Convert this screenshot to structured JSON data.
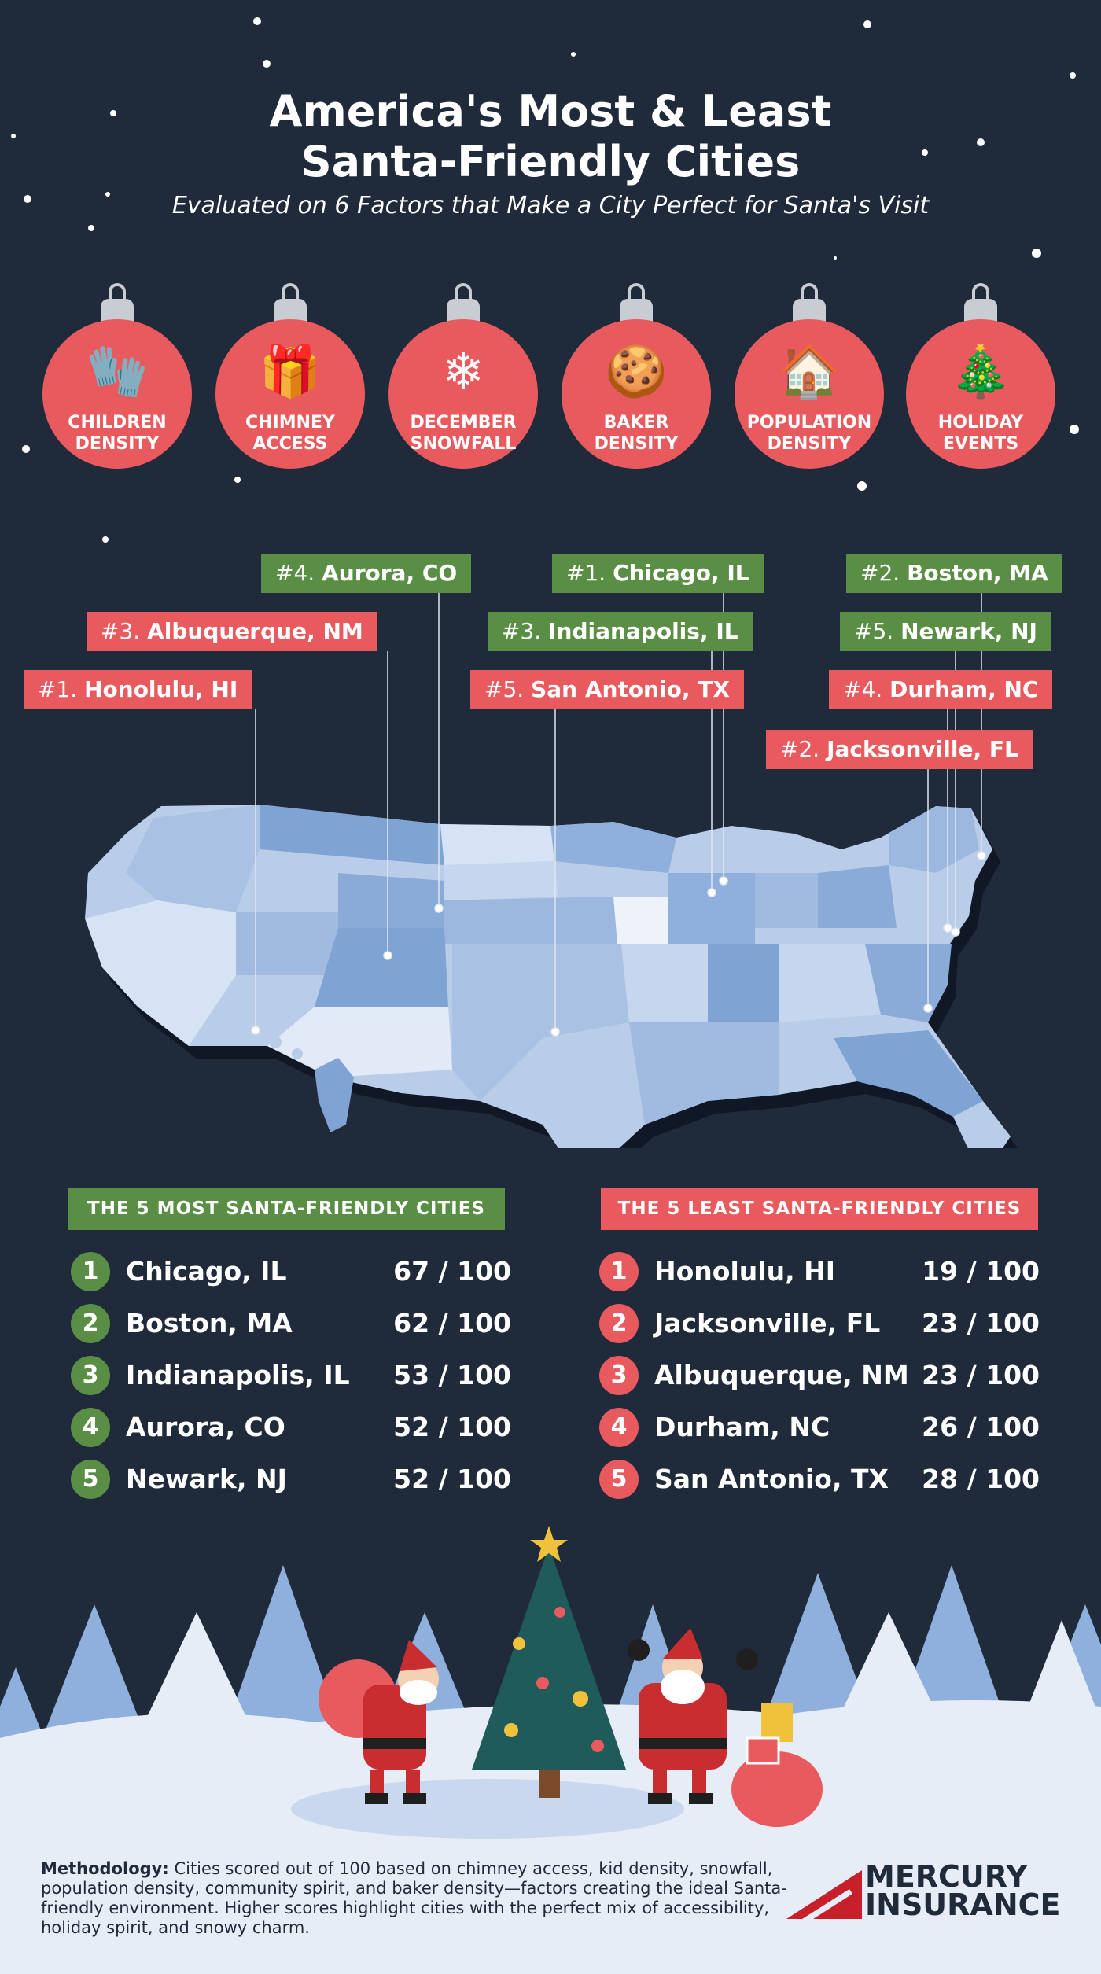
{
  "header": {
    "title_line1": "America's Most & Least",
    "title_line2": "Santa-Friendly Cities",
    "subtitle": "Evaluated on 6 Factors that Make a City Perfect for Santa's Visit"
  },
  "factors": [
    {
      "label": "CHILDREN\nDENSITY",
      "icon": "mittens-icon",
      "glyph": "🧤"
    },
    {
      "label": "CHIMNEY\nACCESS",
      "icon": "gift-icon",
      "glyph": "🎁"
    },
    {
      "label": "DECEMBER\nSNOWFALL",
      "icon": "snowflake-icon",
      "glyph": "❄"
    },
    {
      "label": "BAKER\nDENSITY",
      "icon": "gingerbread-icon",
      "glyph": "🍪"
    },
    {
      "label": "POPULATION\nDENSITY",
      "icon": "houses-icon",
      "glyph": "🏠"
    },
    {
      "label": "HOLIDAY\nEVENTS",
      "icon": "christmas-tree-icon",
      "glyph": "🎄"
    }
  ],
  "map_tags": [
    {
      "rank": "#4.",
      "city": "Aurora, CO",
      "type": "most"
    },
    {
      "rank": "#1.",
      "city": "Chicago, IL",
      "type": "most"
    },
    {
      "rank": "#2.",
      "city": "Boston, MA",
      "type": "most"
    },
    {
      "rank": "#3.",
      "city": "Albuquerque, NM",
      "type": "least"
    },
    {
      "rank": "#3.",
      "city": "Indianapolis, IL",
      "type": "most"
    },
    {
      "rank": "#5.",
      "city": "Newark, NJ",
      "type": "most"
    },
    {
      "rank": "#1.",
      "city": "Honolulu, HI",
      "type": "least"
    },
    {
      "rank": "#5.",
      "city": "San Antonio, TX",
      "type": "least"
    },
    {
      "rank": "#4.",
      "city": "Durham, NC",
      "type": "least"
    },
    {
      "rank": "#2.",
      "city": "Jacksonville, FL",
      "type": "least"
    }
  ],
  "most": {
    "heading": "THE 5 MOST SANTA-FRIENDLY CITIES",
    "rows": [
      {
        "num": "1",
        "city": "Chicago, IL",
        "score": "67 / 100"
      },
      {
        "num": "2",
        "city": "Boston, MA",
        "score": "62 / 100"
      },
      {
        "num": "3",
        "city": "Indianapolis, IL",
        "score": "53 / 100"
      },
      {
        "num": "4",
        "city": "Aurora, CO",
        "score": "52 / 100"
      },
      {
        "num": "5",
        "city": "Newark, NJ",
        "score": "52 / 100"
      }
    ]
  },
  "least": {
    "heading": "THE 5 LEAST SANTA-FRIENDLY CITIES",
    "rows": [
      {
        "num": "1",
        "city": "Honolulu, HI",
        "score": "19 / 100"
      },
      {
        "num": "2",
        "city": "Jacksonville, FL",
        "score": "23 / 100"
      },
      {
        "num": "3",
        "city": "Albuquerque, NM",
        "score": "23 / 100"
      },
      {
        "num": "4",
        "city": "Durham, NC",
        "score": "26 / 100"
      },
      {
        "num": "5",
        "city": "San Antonio, TX",
        "score": "28 / 100"
      }
    ]
  },
  "methodology": {
    "label": "Methodology:",
    "text": "Cities scored out of 100 based on chimney access, kid density, snowfall, population density, community spirit, and baker density—factors creating the ideal Santa-friendly environment. Higher scores highlight cities with the perfect mix of accessibility, holiday spirit, and snowy charm."
  },
  "brand": {
    "line1": "MERCURY",
    "line2": "INSURANCE"
  },
  "colors": {
    "background": "#1f2a3a",
    "green": "#5a8e45",
    "red": "#e85a5e",
    "map_blue": "#7fa3d3",
    "snow": "#e6edf7"
  }
}
